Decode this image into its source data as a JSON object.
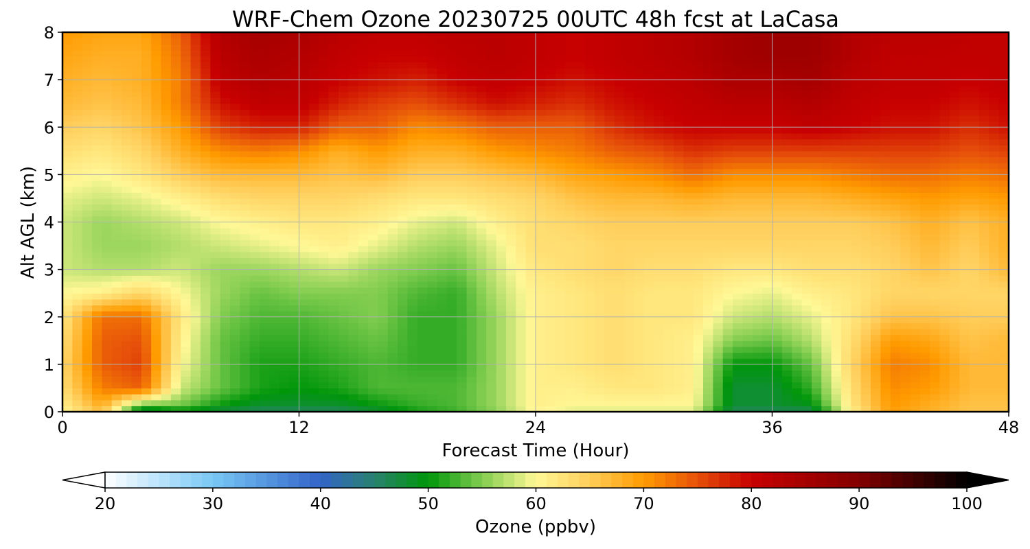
{
  "chart_data": {
    "type": "heatmap",
    "title": "WRF-Chem Ozone  20230725 00UTC 48h fcst at LaCasa",
    "xlabel": "Forecast Time (Hour)",
    "ylabel": "Alt AGL (km)",
    "x_ticks": [
      "0",
      "12",
      "24",
      "36",
      "48"
    ],
    "y_ticks": [
      "0",
      "1",
      "2",
      "3",
      "4",
      "5",
      "6",
      "7",
      "8"
    ],
    "xlim": [
      0,
      48
    ],
    "ylim": [
      0,
      8
    ],
    "grid": true,
    "colorbar": {
      "label": "Ozone  (ppbv)",
      "ticks": [
        "20",
        "30",
        "40",
        "50",
        "60",
        "70",
        "80",
        "90",
        "100"
      ],
      "range": [
        20,
        100
      ],
      "extend": "both"
    },
    "x_hours": [
      0,
      2,
      4,
      6,
      8,
      10,
      12,
      14,
      16,
      18,
      20,
      22,
      24,
      26,
      28,
      30,
      32,
      34,
      36,
      38,
      40,
      42,
      44,
      46,
      48
    ],
    "z_km": [
      0,
      0.1,
      0.5,
      1,
      1.5,
      2,
      2.5,
      3,
      3.5,
      4,
      4.5,
      5,
      5.5,
      6,
      6.5,
      7,
      7.5,
      8
    ],
    "ozone_ppbv": [
      [
        60,
        66,
        45,
        47,
        46,
        45,
        45,
        45,
        47,
        50,
        52,
        55,
        60,
        58,
        58,
        58,
        58,
        45,
        45,
        45,
        60,
        70,
        68,
        66,
        66
      ],
      [
        61,
        68,
        52,
        54,
        50,
        48,
        48,
        48,
        50,
        52,
        53,
        56,
        61,
        60,
        60,
        60,
        60,
        48,
        48,
        49,
        62,
        70,
        68,
        66,
        66
      ],
      [
        63,
        72,
        74,
        58,
        54,
        51,
        50,
        51,
        53,
        53,
        53,
        56,
        61,
        61,
        62,
        62,
        61,
        48,
        48,
        52,
        63,
        71,
        70,
        67,
        67
      ],
      [
        64,
        74,
        76,
        60,
        54,
        51,
        51,
        52,
        53,
        52,
        52,
        56,
        61,
        62,
        63,
        62,
        61,
        50,
        50,
        54,
        64,
        72,
        71,
        67,
        67
      ],
      [
        63,
        74,
        75,
        61,
        54,
        52,
        52,
        53,
        54,
        52,
        52,
        56,
        61,
        62,
        63,
        62,
        61,
        55,
        54,
        57,
        63,
        70,
        69,
        66,
        67
      ],
      [
        62,
        73,
        73,
        62,
        55,
        53,
        53,
        54,
        55,
        52,
        52,
        56,
        61,
        62,
        63,
        62,
        62,
        58,
        57,
        59,
        62,
        66,
        66,
        65,
        65
      ],
      [
        60,
        61,
        64,
        60,
        56,
        54,
        55,
        55,
        55,
        53,
        52,
        57,
        61,
        62,
        63,
        62,
        62,
        60,
        59,
        61,
        62,
        64,
        64,
        64,
        64
      ],
      [
        58,
        57,
        57,
        58,
        56,
        56,
        57,
        58,
        56,
        55,
        54,
        58,
        62,
        63,
        64,
        63,
        63,
        62,
        62,
        63,
        63,
        64,
        66,
        64,
        67
      ],
      [
        58,
        56,
        56,
        57,
        58,
        59,
        60,
        61,
        59,
        57,
        56,
        59,
        63,
        63,
        64,
        64,
        64,
        64,
        64,
        64,
        64,
        65,
        67,
        65,
        68
      ],
      [
        58,
        56,
        57,
        58,
        60,
        61,
        62,
        62,
        61,
        59,
        58,
        61,
        63,
        64,
        65,
        65,
        65,
        65,
        65,
        65,
        65,
        66,
        68,
        66,
        68
      ],
      [
        59,
        58,
        59,
        61,
        63,
        64,
        64,
        64,
        63,
        62,
        62,
        63,
        64,
        66,
        67,
        67,
        68,
        67,
        67,
        67,
        68,
        69,
        70,
        69,
        70
      ],
      [
        61,
        60,
        62,
        65,
        67,
        67,
        67,
        66,
        67,
        65,
        65,
        66,
        67,
        69,
        70,
        71,
        73,
        71,
        71,
        71,
        72,
        73,
        73,
        72,
        73
      ],
      [
        63,
        62,
        64,
        68,
        71,
        72,
        71,
        68,
        70,
        68,
        68,
        70,
        71,
        72,
        74,
        75,
        77,
        76,
        76,
        76,
        76,
        76,
        76,
        75,
        76
      ],
      [
        65,
        64,
        66,
        70,
        76,
        78,
        78,
        74,
        74,
        71,
        72,
        74,
        74,
        74,
        77,
        79,
        80,
        80,
        80,
        81,
        80,
        79,
        79,
        77,
        79
      ],
      [
        67,
        66,
        67,
        72,
        79,
        81,
        81,
        78,
        76,
        75,
        77,
        79,
        78,
        77,
        79,
        80,
        81,
        82,
        82,
        83,
        81,
        80,
        80,
        79,
        80
      ],
      [
        68,
        67,
        68,
        72,
        81,
        83,
        82,
        80,
        79,
        78,
        80,
        81,
        80,
        79,
        80,
        81,
        82,
        84,
        84,
        85,
        82,
        81,
        81,
        80,
        81
      ],
      [
        69,
        68,
        68,
        73,
        82,
        84,
        83,
        81,
        80,
        80,
        81,
        82,
        81,
        80,
        81,
        82,
        83,
        85,
        86,
        86,
        83,
        81,
        81,
        81,
        81
      ],
      [
        70,
        69,
        69,
        74,
        83,
        85,
        84,
        82,
        81,
        81,
        82,
        82,
        81,
        80,
        81,
        82,
        83,
        85,
        86,
        86,
        83,
        82,
        82,
        81,
        81
      ]
    ]
  }
}
